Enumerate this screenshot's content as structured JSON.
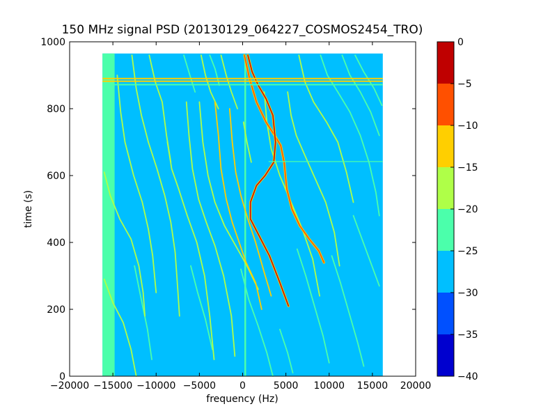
{
  "chart_data": {
    "type": "heatmap",
    "title": "150 MHz signal PSD (20130129_064227_COSMOS2454_TRO)",
    "xlabel": "frequency (Hz)",
    "ylabel": "time (s)",
    "xlim": [
      -20000,
      20000
    ],
    "ylim": [
      0,
      1000
    ],
    "xticks": [
      -20000,
      -15000,
      -10000,
      -5000,
      0,
      5000,
      10000,
      15000,
      20000
    ],
    "xtick_labels": [
      "−20000",
      "−15000",
      "−10000",
      "−5000",
      "0",
      "5000",
      "10000",
      "15000",
      "20000"
    ],
    "yticks": [
      0,
      200,
      400,
      600,
      800,
      1000
    ],
    "ytick_labels": [
      "0",
      "200",
      "400",
      "600",
      "800",
      "1000"
    ],
    "data_extent": {
      "x": [
        -16200,
        16200
      ],
      "y": [
        0,
        965
      ]
    },
    "background_level": "-30 to -25",
    "low_band": {
      "x": [
        -16200,
        -14800
      ],
      "level": "-25 to -20"
    },
    "horizontal_bands": [
      {
        "y": 890,
        "level": "-15 to -10"
      },
      {
        "y": 882,
        "level": "-15 to -10"
      },
      {
        "y": 872,
        "level": "-25 to -20"
      },
      {
        "y": 642,
        "level": "-25 to -20"
      }
    ],
    "tracks": [
      {
        "level": "-5 to 0",
        "points": [
          [
            600,
            960
          ],
          [
            1100,
            910
          ],
          [
            1800,
            870
          ],
          [
            2700,
            830
          ],
          [
            3500,
            780
          ],
          [
            3800,
            700
          ],
          [
            3600,
            640
          ],
          [
            2600,
            600
          ],
          [
            1600,
            570
          ],
          [
            900,
            520
          ],
          [
            900,
            470
          ],
          [
            1900,
            420
          ],
          [
            3100,
            360
          ],
          [
            4300,
            280
          ],
          [
            5300,
            210
          ]
        ]
      },
      {
        "level": "-10 to -5",
        "points": [
          [
            200,
            960
          ],
          [
            800,
            890
          ],
          [
            1600,
            820
          ],
          [
            2700,
            760
          ],
          [
            3700,
            720
          ],
          [
            4400,
            690
          ],
          [
            4800,
            640
          ],
          [
            5100,
            560
          ],
          [
            5700,
            500
          ],
          [
            6600,
            450
          ],
          [
            7700,
            410
          ],
          [
            8800,
            375
          ],
          [
            9400,
            340
          ]
        ]
      },
      {
        "level": "-15 to -10",
        "points": [
          [
            -3200,
            820
          ],
          [
            -2800,
            720
          ],
          [
            -2500,
            620
          ],
          [
            -1900,
            530
          ],
          [
            -1200,
            460
          ],
          [
            -400,
            400
          ],
          [
            400,
            340
          ],
          [
            1500,
            280
          ],
          [
            2200,
            200
          ]
        ]
      },
      {
        "level": "-15 to -10",
        "points": [
          [
            -1500,
            800
          ],
          [
            -1200,
            700
          ],
          [
            -800,
            610
          ],
          [
            -200,
            540
          ],
          [
            600,
            470
          ],
          [
            1500,
            400
          ],
          [
            2500,
            310
          ],
          [
            3300,
            240
          ]
        ]
      },
      {
        "level": "-20 to -15",
        "points": [
          [
            -5000,
            820
          ],
          [
            -4600,
            700
          ],
          [
            -4000,
            600
          ],
          [
            -3200,
            520
          ],
          [
            -2100,
            450
          ],
          [
            -800,
            390
          ],
          [
            500,
            330
          ],
          [
            1800,
            260
          ]
        ]
      },
      {
        "level": "-20 to -15",
        "points": [
          [
            -4800,
            960
          ],
          [
            -4300,
            900
          ],
          [
            -3700,
            850
          ],
          [
            -2800,
            800
          ]
        ]
      },
      {
        "level": "-20 to -15",
        "points": [
          [
            -2500,
            960
          ],
          [
            -1900,
            900
          ],
          [
            -1300,
            850
          ],
          [
            -600,
            800
          ]
        ]
      },
      {
        "level": "-20 to -15",
        "points": [
          [
            2500,
            850
          ],
          [
            2800,
            760
          ],
          [
            3300,
            680
          ],
          [
            4300,
            600
          ],
          [
            5600,
            520
          ],
          [
            6900,
            440
          ],
          [
            8100,
            350
          ],
          [
            8900,
            240
          ]
        ]
      },
      {
        "level": "-20 to -15",
        "points": [
          [
            5200,
            850
          ],
          [
            5600,
            780
          ],
          [
            6200,
            720
          ],
          [
            7200,
            660
          ],
          [
            8400,
            590
          ],
          [
            9600,
            520
          ],
          [
            10600,
            430
          ],
          [
            11200,
            330
          ]
        ]
      },
      {
        "level": "-20 to -15",
        "points": [
          [
            6500,
            960
          ],
          [
            7200,
            880
          ],
          [
            8200,
            820
          ],
          [
            9700,
            760
          ],
          [
            11000,
            700
          ],
          [
            12000,
            610
          ],
          [
            12800,
            520
          ]
        ]
      },
      {
        "level": "-25 to -20",
        "points": [
          [
            9000,
            960
          ],
          [
            9800,
            900
          ],
          [
            11000,
            850
          ],
          [
            12400,
            790
          ],
          [
            13600,
            720
          ],
          [
            14600,
            640
          ],
          [
            15400,
            550
          ],
          [
            15800,
            480
          ]
        ]
      },
      {
        "level": "-25 to -20",
        "points": [
          [
            11500,
            960
          ],
          [
            12400,
            900
          ],
          [
            13600,
            850
          ],
          [
            14800,
            790
          ],
          [
            15800,
            720
          ]
        ]
      },
      {
        "level": "-25 to -20",
        "points": [
          [
            13000,
            960
          ],
          [
            14000,
            910
          ],
          [
            15200,
            860
          ],
          [
            16100,
            810
          ]
        ]
      },
      {
        "level": "-20 to -15",
        "points": [
          [
            -6500,
            820
          ],
          [
            -6200,
            720
          ],
          [
            -5800,
            620
          ],
          [
            -5100,
            530
          ],
          [
            -4200,
            460
          ],
          [
            -3200,
            390
          ],
          [
            -2200,
            300
          ],
          [
            -1300,
            180
          ],
          [
            -900,
            60
          ]
        ]
      },
      {
        "level": "-20 to -15",
        "points": [
          [
            -8700,
            700
          ],
          [
            -8200,
            620
          ],
          [
            -7400,
            560
          ],
          [
            -6400,
            480
          ],
          [
            -5300,
            400
          ],
          [
            -4400,
            300
          ],
          [
            -3800,
            180
          ],
          [
            -3300,
            50
          ]
        ]
      },
      {
        "level": "-20 to -15",
        "points": [
          [
            -14500,
            900
          ],
          [
            -14100,
            790
          ],
          [
            -13600,
            700
          ],
          [
            -12600,
            600
          ],
          [
            -11600,
            520
          ],
          [
            -10900,
            440
          ],
          [
            -10400,
            360
          ],
          [
            -10000,
            250
          ]
        ]
      },
      {
        "level": "-20 to -15",
        "points": [
          [
            -12800,
            960
          ],
          [
            -12300,
            860
          ],
          [
            -11700,
            780
          ],
          [
            -10900,
            700
          ],
          [
            -9900,
            620
          ],
          [
            -9000,
            540
          ],
          [
            -8300,
            460
          ],
          [
            -7800,
            370
          ],
          [
            -7500,
            260
          ],
          [
            -7300,
            180
          ]
        ]
      },
      {
        "level": "-20 to -15",
        "points": [
          [
            -10800,
            960
          ],
          [
            -10100,
            880
          ],
          [
            -9300,
            820
          ],
          [
            -8800,
            720
          ],
          [
            -8300,
            640
          ]
        ]
      },
      {
        "level": "-20 to -15",
        "points": [
          [
            -16000,
            610
          ],
          [
            -15300,
            540
          ],
          [
            -14200,
            470
          ],
          [
            -12900,
            410
          ],
          [
            -12000,
            330
          ],
          [
            -11500,
            250
          ],
          [
            -11300,
            180
          ]
        ]
      },
      {
        "level": "-20 to -15",
        "points": [
          [
            -16000,
            290
          ],
          [
            -15000,
            220
          ],
          [
            -13800,
            160
          ],
          [
            -12900,
            80
          ],
          [
            -12300,
            0
          ]
        ]
      },
      {
        "level": "-25 to -20",
        "points": [
          [
            -6000,
            330
          ],
          [
            -5200,
            250
          ],
          [
            -4300,
            170
          ],
          [
            -3500,
            80
          ]
        ]
      },
      {
        "level": "-25 to -20",
        "points": [
          [
            -12500,
            330
          ],
          [
            -11800,
            240
          ],
          [
            -11000,
            140
          ],
          [
            -10500,
            50
          ]
        ]
      },
      {
        "level": "-20 to -15",
        "points": [
          [
            100,
            760
          ],
          [
            500,
            700
          ],
          [
            1000,
            640
          ]
        ]
      },
      {
        "level": "-25 to -20",
        "points": [
          [
            -200,
            320
          ],
          [
            700,
            230
          ],
          [
            1800,
            150
          ],
          [
            2800,
            70
          ],
          [
            3500,
            0
          ]
        ]
      },
      {
        "level": "-25 to -20",
        "points": [
          [
            6300,
            380
          ],
          [
            7300,
            300
          ],
          [
            8300,
            210
          ],
          [
            9300,
            120
          ],
          [
            10000,
            40
          ]
        ]
      },
      {
        "level": "-25 to -20",
        "points": [
          [
            10300,
            360
          ],
          [
            11300,
            280
          ],
          [
            12300,
            190
          ],
          [
            13300,
            100
          ],
          [
            14000,
            30
          ]
        ]
      },
      {
        "level": "-25 to -20",
        "points": [
          [
            4300,
            140
          ],
          [
            5200,
            70
          ],
          [
            5800,
            10
          ]
        ]
      },
      {
        "level": "-25 to -20",
        "points": [
          [
            12800,
            480
          ],
          [
            13800,
            410
          ],
          [
            14800,
            340
          ],
          [
            15800,
            270
          ]
        ]
      },
      {
        "level": "-25 to -20",
        "points": [
          [
            -3800,
            960
          ],
          [
            -3200,
            920
          ],
          [
            -2700,
            870
          ]
        ]
      },
      {
        "level": "-25 to -20",
        "points": [
          [
            -6800,
            960
          ],
          [
            -6100,
            900
          ],
          [
            -5500,
            850
          ]
        ]
      }
    ],
    "center_spike": {
      "x": 300,
      "y": [
        0,
        960
      ],
      "level": "-25 to -20"
    },
    "colorbar": {
      "levels": [
        0,
        -5,
        -10,
        -15,
        -20,
        -25,
        -30,
        -35,
        -40
      ],
      "labels": [
        "0",
        "−5",
        "−10",
        "−15",
        "−20",
        "−25",
        "−30",
        "−35",
        "−40"
      ],
      "colors": [
        "#bf0000",
        "#ff5000",
        "#ffcf00",
        "#afff48",
        "#4bffab",
        "#00bfff",
        "#0050ff",
        "#0000cf"
      ]
    },
    "grid": false,
    "colors": {
      "background_level": "#00bfff",
      "low_band": "#4bffab",
      "-25 to -20": "#4bffab",
      "-20 to -15": "#afff48",
      "-15 to -10": "#ffcf00",
      "-10 to -5": "#ff5000",
      "-5 to 0": "#bf0000"
    }
  }
}
